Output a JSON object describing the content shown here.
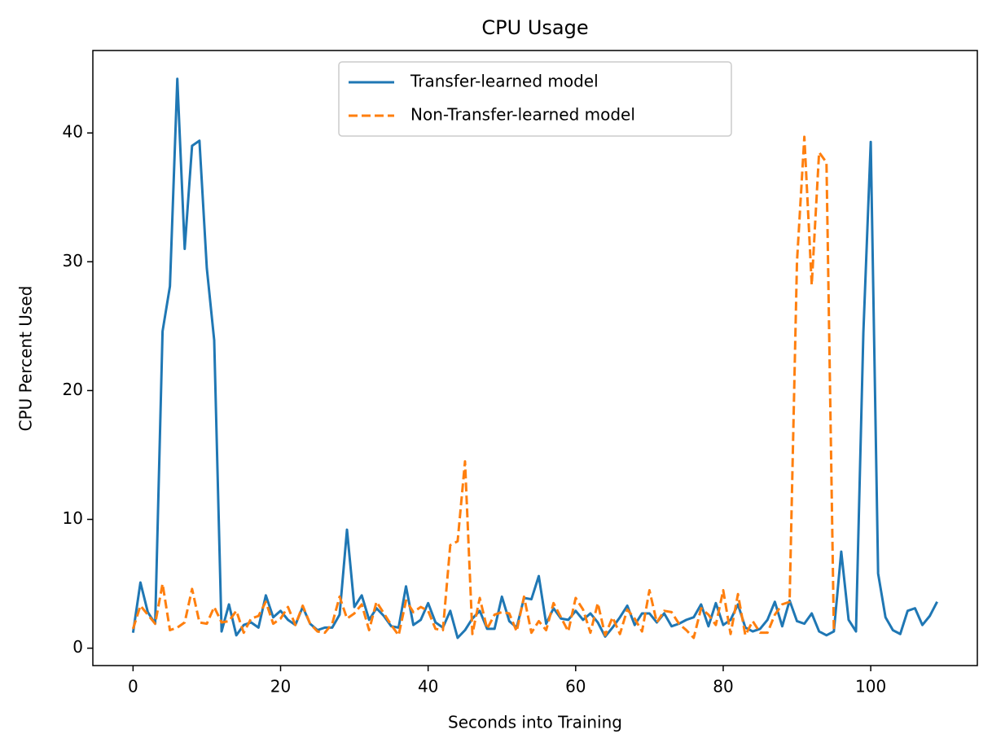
{
  "chart_data": {
    "type": "line",
    "title": "CPU Usage",
    "x_label": "Seconds into Training",
    "y_label": "CPU Percent Used",
    "x": [
      0,
      1,
      2,
      3,
      4,
      5,
      6,
      7,
      8,
      9,
      10,
      11,
      12,
      13,
      14,
      15,
      16,
      17,
      18,
      19,
      20,
      21,
      22,
      23,
      24,
      25,
      26,
      27,
      28,
      29,
      30,
      31,
      32,
      33,
      34,
      35,
      36,
      37,
      38,
      39,
      40,
      41,
      42,
      43,
      44,
      45,
      46,
      47,
      48,
      49,
      50,
      51,
      52,
      53,
      54,
      55,
      56,
      57,
      58,
      59,
      60,
      61,
      62,
      63,
      64,
      65,
      66,
      67,
      68,
      69,
      70,
      71,
      72,
      73,
      74,
      75,
      76,
      77,
      78,
      79,
      80,
      81,
      82,
      83,
      84,
      85,
      86,
      87,
      88,
      89,
      90,
      91,
      92,
      93,
      94,
      95,
      96,
      97,
      98,
      99,
      100,
      101,
      102,
      103,
      104,
      105,
      106,
      107,
      108,
      109
    ],
    "series": [
      {
        "name": "Transfer-learned model",
        "color": "#1f77b4",
        "dash": false,
        "values": [
          1.2,
          5.1,
          2.8,
          1.9,
          24.6,
          28.1,
          44.2,
          31.0,
          39.0,
          39.4,
          29.5,
          23.9,
          1.3,
          3.4,
          1.0,
          1.8,
          2.0,
          1.6,
          4.1,
          2.4,
          2.9,
          2.2,
          1.8,
          3.2,
          1.9,
          1.4,
          1.6,
          1.6,
          2.6,
          9.2,
          3.2,
          4.1,
          2.2,
          3.1,
          2.5,
          1.7,
          1.6,
          4.8,
          1.8,
          2.2,
          3.5,
          2.0,
          1.6,
          2.9,
          0.8,
          1.4,
          2.3,
          2.9,
          1.5,
          1.5,
          4.0,
          2.1,
          1.6,
          3.9,
          3.8,
          5.6,
          1.9,
          3.1,
          2.3,
          2.2,
          2.9,
          2.2,
          2.7,
          2.0,
          0.9,
          1.6,
          2.4,
          3.3,
          1.8,
          2.7,
          2.7,
          2.0,
          2.7,
          1.7,
          1.9,
          2.2,
          2.4,
          3.4,
          1.7,
          3.5,
          1.8,
          2.2,
          3.4,
          1.6,
          1.3,
          1.5,
          2.2,
          3.6,
          1.7,
          3.7,
          2.1,
          1.9,
          2.7,
          1.3,
          1.0,
          1.3,
          7.5,
          2.2,
          1.3,
          24.5,
          39.3,
          5.8,
          2.4,
          1.4,
          1.1,
          2.9,
          3.1,
          1.8,
          2.5,
          3.6
        ]
      },
      {
        "name": "Non-Transfer-learned model",
        "color": "#ff7f0e",
        "dash": true,
        "values": [
          1.5,
          3.3,
          2.6,
          1.9,
          5.0,
          1.4,
          1.6,
          2.0,
          4.6,
          2.0,
          1.9,
          3.2,
          2.0,
          2.1,
          2.9,
          1.2,
          2.3,
          2.5,
          3.6,
          1.9,
          2.3,
          3.2,
          1.8,
          3.3,
          1.9,
          1.3,
          1.2,
          1.9,
          4.0,
          2.3,
          2.7,
          3.4,
          1.4,
          3.6,
          2.7,
          1.8,
          1.0,
          3.7,
          2.8,
          3.2,
          2.9,
          1.5,
          1.4,
          8.0,
          8.3,
          14.5,
          1.1,
          3.9,
          1.5,
          2.6,
          2.8,
          2.7,
          1.3,
          4.0,
          1.2,
          2.1,
          1.4,
          3.5,
          2.4,
          1.3,
          3.9,
          3.0,
          1.2,
          3.5,
          1.0,
          2.4,
          1.1,
          3.0,
          2.3,
          1.3,
          4.5,
          2.0,
          2.9,
          2.8,
          1.9,
          1.4,
          0.8,
          3.1,
          2.6,
          1.8,
          4.5,
          1.1,
          4.2,
          1.0,
          2.1,
          1.2,
          1.2,
          2.6,
          3.4,
          3.6,
          30.0,
          39.7,
          28.2,
          38.5,
          37.7,
          1.3,
          null,
          null,
          null,
          null,
          null,
          null,
          null,
          null,
          null,
          null,
          null,
          null,
          null,
          null
        ]
      }
    ],
    "xlim": [
      -5.45,
      114.45
    ],
    "ylim": [
      -1.35,
      46.4
    ],
    "xticks": [
      0,
      20,
      40,
      60,
      80,
      100
    ],
    "yticks": [
      0,
      10,
      20,
      30,
      40
    ],
    "legend": "upper center"
  }
}
